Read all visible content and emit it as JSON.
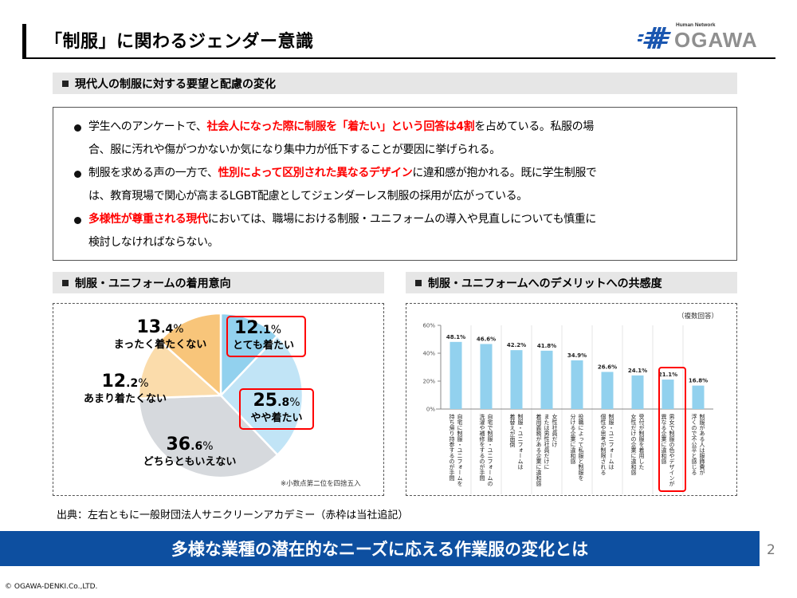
{
  "header": {
    "title": "「制服」に関わるジェンダー意識",
    "logo": {
      "subtitle": "Human Network",
      "name": "OGAWA",
      "accent": "#1a56b0"
    }
  },
  "section1": {
    "heading": "現代人の制服に対する要望と配慮の変化",
    "bullets": [
      {
        "segments": [
          {
            "text": "学生へのアンケートで、",
            "highlight": false
          },
          {
            "text": "社会人になった際に制服を「着たい」という回答は4割",
            "highlight": true
          },
          {
            "text": "を占めている。私服の場",
            "highlight": false
          }
        ],
        "continuation": "合、服に汚れや傷がつかないか気になり集中力が低下することが要因に挙げられる。"
      },
      {
        "segments": [
          {
            "text": "制服を求める声の一方で、",
            "highlight": false
          },
          {
            "text": "性別によって区別された異なるデザイン",
            "highlight": true
          },
          {
            "text": "に違和感が抱かれる。既に学生制服で",
            "highlight": false
          }
        ],
        "continuation": "は、教育現場で関心が高まるLGBT配慮としてジェンダーレス制服の採用が広がっている。"
      },
      {
        "segments": [
          {
            "text": "多様性が尊重される現代",
            "highlight": true
          },
          {
            "text": "においては、職場における制服・ユニフォームの導入や見直しについても慎重に",
            "highlight": false
          }
        ],
        "continuation": "検討しなければならない。"
      }
    ],
    "highlight_color": "#ff0000"
  },
  "section2": {
    "heading": "制服・ユニフォームの着用意向",
    "note": "※小数点第二位を四捨五入"
  },
  "section3": {
    "heading": "制服・ユニフォームへのデメリットへの共感度",
    "note": "（複数回答）"
  },
  "chart_data": [
    {
      "type": "pie",
      "title": "制服・ユニフォームの着用意向",
      "slices": [
        {
          "label": "とても着たい",
          "value": 12.1,
          "int": "12",
          "dec": ".1",
          "color": "#92d1ee",
          "highlighted": true
        },
        {
          "label": "やや着たい",
          "value": 25.8,
          "int": "25",
          "dec": ".8",
          "color": "#c1e4f6",
          "highlighted": true
        },
        {
          "label": "どちらともいえない",
          "value": 36.6,
          "int": "36",
          "dec": ".6",
          "color": "#d6d9dd",
          "highlighted": false
        },
        {
          "label": "あまり着たくない",
          "value": 12.2,
          "int": "12",
          "dec": ".2",
          "color": "#fbdcab",
          "highlighted": false
        },
        {
          "label": "まったく着たくない",
          "value": 13.4,
          "int": "13",
          "dec": ".4",
          "color": "#f8c57a",
          "highlighted": false
        }
      ],
      "pct_sign": "%",
      "start": "top, clockwise"
    },
    {
      "type": "bar",
      "title": "制服・ユニフォームへのデメリットへの共感度",
      "categories": [
        "自宅に制服・ユニフォームを持ち帰り持参するのが手間",
        "自宅で制服・ユニフォームの洗濯や補修をするのが手間",
        "制服・ユニフォームは着替えが面倒",
        "女性社員だけまたは男性社員だけに着用義務がある企業に違和感",
        "役職によって私服と制服を分ける企業に違和感",
        "制服・ユニフォームは個性や思考が制限される",
        "受付が制服を着用した女性だけの企業に違和感",
        "男女で制服の色やデザインが異なる企業に違和感",
        "制服がある人は服飾費が浮くので不公平と感じる"
      ],
      "category_lines": [
        [
          "自宅に制服・ユニフォームを",
          "持ち帰り持参するのが手間"
        ],
        [
          "自宅で制服・ユニフォームの",
          "洗濯や補修をするのが手間"
        ],
        [
          "制服・ユニフォームは",
          "着替えが面倒"
        ],
        [
          "女性社員だけ",
          "または男性社員だけに",
          "着用義務がある企業に違和感"
        ],
        [
          "役職によって私服と制服を",
          "分ける企業に違和感"
        ],
        [
          "制服・ユニフォームは",
          "個性や思考が制限される"
        ],
        [
          "受付が制服を着用した",
          "女性だけの企業に違和感"
        ],
        [
          "男女で制服の色やデザインが",
          "異なる企業に違和感"
        ],
        [
          "制服がある人は服飾費が",
          "浮くので不公平と感じる"
        ]
      ],
      "values": [
        48.1,
        46.6,
        42.2,
        41.8,
        34.9,
        26.6,
        24.1,
        21.1,
        16.8
      ],
      "value_labels": [
        "48.1%",
        "46.6%",
        "42.2%",
        "41.8%",
        "34.9%",
        "26.6%",
        "24.1%",
        "21.1%",
        "16.8%"
      ],
      "highlighted_index": 7,
      "ylim": [
        0,
        60
      ],
      "yticks": [
        0,
        20,
        40,
        60
      ],
      "ytick_labels": [
        "0%",
        "20%",
        "40%",
        "60%"
      ],
      "bar_color": "#92d1ee",
      "grid": "vertical separators"
    }
  ],
  "source": "出典：左右ともに一般財団法人サニクリーンアカデミー（赤枠は当社追記）",
  "footer": {
    "banner": "多様な業種の潜在的なニーズに応える作業服の変化とは",
    "banner_color": "#0d4fa0",
    "page_number": "2",
    "copyright": "© OGAWA-DENKI.Co.,LTD."
  }
}
